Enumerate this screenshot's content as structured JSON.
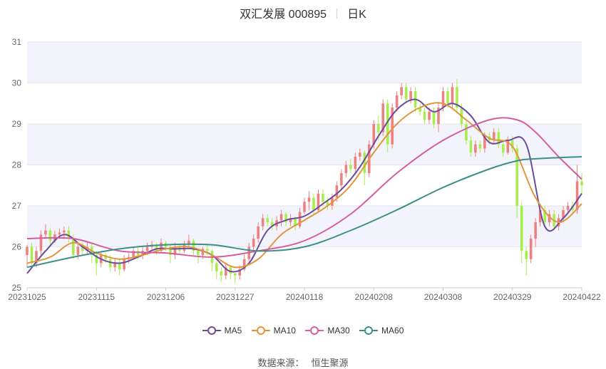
{
  "header": {
    "title": "双汇发展 000895",
    "period": "日K"
  },
  "source": {
    "label": "数据来源：",
    "provider": "恒生聚源"
  },
  "colors": {
    "up": "#f08080",
    "down": "#a6ee4a",
    "MA5": "#6a4c9c",
    "MA10": "#e3953e",
    "MA30": "#d55da2",
    "MA60": "#3b8f8a",
    "band": "#f3f4fb",
    "grid": "#e6e6ee"
  },
  "chart_data": {
    "type": "candlestick",
    "x_ticks": [
      "20231025",
      "20231115",
      "20231206",
      "20231227",
      "20240118",
      "20240208",
      "20240308",
      "20240329",
      "20240422"
    ],
    "y_ticks": [
      25,
      26,
      27,
      28,
      29,
      30,
      31
    ],
    "ylim": [
      25,
      31
    ],
    "n_days": 121,
    "candles": [
      [
        25.8,
        26.0,
        25.5,
        26.05
      ],
      [
        26.0,
        25.6,
        25.5,
        26.1
      ],
      [
        25.6,
        25.9,
        25.5,
        26.0
      ],
      [
        25.9,
        26.3,
        25.8,
        26.4
      ],
      [
        26.3,
        26.4,
        26.2,
        26.55
      ],
      [
        26.4,
        26.15,
        26.0,
        26.45
      ],
      [
        26.15,
        26.3,
        26.1,
        26.4
      ],
      [
        26.3,
        26.35,
        26.2,
        26.45
      ],
      [
        26.35,
        26.4,
        26.2,
        26.5
      ],
      [
        26.4,
        26.2,
        26.1,
        26.5
      ],
      [
        26.2,
        25.8,
        25.7,
        26.3
      ],
      [
        25.8,
        26.0,
        25.7,
        26.1
      ],
      [
        26.0,
        25.9,
        25.8,
        26.1
      ],
      [
        25.9,
        26.0,
        25.8,
        26.1
      ],
      [
        26.0,
        25.8,
        25.6,
        26.1
      ],
      [
        25.8,
        25.6,
        25.3,
        25.9
      ],
      [
        25.6,
        25.8,
        25.5,
        25.9
      ],
      [
        25.8,
        25.7,
        25.6,
        25.85
      ],
      [
        25.7,
        25.5,
        25.4,
        25.8
      ],
      [
        25.5,
        25.6,
        25.4,
        25.7
      ],
      [
        25.6,
        25.45,
        25.3,
        25.7
      ],
      [
        25.45,
        25.7,
        25.4,
        25.8
      ],
      [
        25.7,
        25.75,
        25.6,
        25.85
      ],
      [
        25.75,
        25.9,
        25.7,
        26.0
      ],
      [
        25.9,
        25.8,
        25.7,
        26.0
      ],
      [
        25.8,
        25.9,
        25.7,
        26.0
      ],
      [
        25.9,
        26.0,
        25.8,
        26.1
      ],
      [
        26.0,
        26.05,
        25.9,
        26.15
      ],
      [
        26.05,
        25.9,
        25.8,
        26.1
      ],
      [
        25.9,
        26.1,
        25.85,
        26.2
      ],
      [
        26.1,
        26.0,
        25.9,
        26.15
      ],
      [
        26.0,
        25.8,
        25.6,
        26.05
      ],
      [
        25.8,
        26.0,
        25.7,
        26.1
      ],
      [
        26.0,
        25.9,
        25.8,
        26.05
      ],
      [
        25.9,
        26.05,
        25.85,
        26.15
      ],
      [
        26.05,
        26.15,
        26.0,
        26.3
      ],
      [
        26.15,
        25.9,
        25.8,
        26.2
      ],
      [
        25.9,
        25.8,
        25.6,
        25.95
      ],
      [
        25.8,
        25.95,
        25.7,
        26.0
      ],
      [
        25.95,
        25.9,
        25.8,
        26.05
      ],
      [
        25.9,
        25.6,
        25.4,
        25.95
      ],
      [
        25.6,
        25.4,
        25.2,
        25.65
      ],
      [
        25.4,
        25.3,
        25.15,
        25.5
      ],
      [
        25.3,
        25.5,
        25.2,
        25.6
      ],
      [
        25.5,
        25.35,
        25.2,
        25.55
      ],
      [
        25.35,
        25.3,
        25.1,
        25.4
      ],
      [
        25.3,
        25.45,
        25.2,
        25.55
      ],
      [
        25.45,
        25.7,
        25.4,
        25.8
      ],
      [
        25.7,
        26.0,
        25.6,
        26.1
      ],
      [
        26.0,
        26.2,
        25.9,
        26.3
      ],
      [
        26.2,
        26.5,
        26.1,
        26.6
      ],
      [
        26.5,
        26.7,
        26.4,
        26.8
      ],
      [
        26.7,
        26.6,
        26.5,
        26.8
      ],
      [
        26.6,
        26.5,
        26.4,
        26.7
      ],
      [
        26.5,
        26.65,
        26.4,
        26.75
      ],
      [
        26.65,
        26.8,
        26.5,
        26.9
      ],
      [
        26.8,
        26.6,
        26.5,
        26.85
      ],
      [
        26.6,
        26.7,
        26.5,
        26.8
      ],
      [
        26.7,
        26.5,
        26.4,
        26.75
      ],
      [
        26.5,
        26.85,
        26.45,
        26.95
      ],
      [
        26.85,
        27.1,
        26.8,
        27.2
      ],
      [
        27.1,
        27.2,
        26.9,
        27.35
      ],
      [
        27.2,
        26.9,
        26.8,
        27.3
      ],
      [
        26.9,
        27.3,
        26.85,
        27.4
      ],
      [
        27.3,
        27.1,
        27.0,
        27.4
      ],
      [
        27.1,
        27.0,
        26.9,
        27.2
      ],
      [
        27.0,
        27.2,
        26.9,
        27.3
      ],
      [
        27.2,
        27.5,
        27.1,
        27.6
      ],
      [
        27.5,
        27.8,
        27.4,
        27.9
      ],
      [
        27.8,
        28.0,
        27.7,
        28.1
      ],
      [
        28.0,
        27.9,
        27.8,
        28.15
      ],
      [
        27.9,
        28.2,
        27.8,
        28.3
      ],
      [
        28.2,
        28.3,
        28.1,
        28.4
      ],
      [
        28.3,
        27.8,
        27.5,
        28.35
      ],
      [
        27.8,
        28.5,
        27.7,
        28.6
      ],
      [
        28.5,
        29.0,
        28.4,
        29.1
      ],
      [
        29.0,
        28.8,
        28.6,
        29.2
      ],
      [
        28.8,
        29.5,
        28.7,
        29.6
      ],
      [
        29.5,
        28.5,
        28.3,
        29.6
      ],
      [
        28.5,
        29.4,
        28.4,
        29.5
      ],
      [
        29.4,
        29.7,
        29.3,
        29.8
      ],
      [
        29.7,
        29.9,
        29.6,
        30.0
      ],
      [
        29.9,
        29.6,
        29.5,
        30.0
      ],
      [
        29.6,
        29.8,
        29.5,
        29.9
      ],
      [
        29.8,
        29.4,
        29.3,
        29.9
      ],
      [
        29.4,
        29.3,
        29.2,
        29.5
      ],
      [
        29.3,
        29.1,
        29.0,
        29.4
      ],
      [
        29.1,
        29.3,
        29.0,
        29.4
      ],
      [
        29.3,
        29.0,
        28.9,
        29.4
      ],
      [
        29.0,
        29.4,
        28.8,
        29.5
      ],
      [
        29.4,
        29.8,
        29.3,
        29.9
      ],
      [
        29.8,
        29.5,
        29.4,
        29.9
      ],
      [
        29.5,
        29.9,
        29.4,
        30.0
      ],
      [
        29.9,
        29.4,
        29.3,
        30.1
      ],
      [
        29.4,
        29.0,
        28.9,
        29.5
      ],
      [
        29.0,
        28.6,
        28.5,
        29.1
      ],
      [
        28.6,
        28.3,
        28.2,
        28.7
      ],
      [
        28.3,
        28.5,
        28.2,
        28.6
      ],
      [
        28.5,
        28.4,
        28.3,
        28.6
      ],
      [
        28.4,
        28.7,
        28.3,
        28.8
      ],
      [
        28.7,
        28.6,
        28.5,
        28.8
      ],
      [
        28.6,
        28.8,
        28.5,
        28.9
      ],
      [
        28.8,
        28.5,
        28.4,
        28.9
      ],
      [
        28.5,
        28.3,
        28.2,
        28.6
      ],
      [
        28.3,
        28.6,
        28.25,
        28.7
      ],
      [
        28.6,
        28.4,
        28.3,
        28.7
      ],
      [
        28.4,
        27.0,
        26.7,
        28.5
      ],
      [
        27.0,
        25.9,
        25.6,
        27.1
      ],
      [
        25.9,
        25.7,
        25.3,
        26.0
      ],
      [
        25.7,
        26.2,
        25.6,
        26.3
      ],
      [
        26.2,
        26.6,
        26.0,
        26.7
      ],
      [
        26.6,
        26.9,
        26.5,
        27.0
      ],
      [
        26.9,
        26.6,
        26.5,
        27.0
      ],
      [
        26.6,
        26.8,
        26.5,
        26.9
      ],
      [
        26.8,
        26.5,
        26.4,
        26.9
      ],
      [
        26.5,
        26.7,
        26.4,
        26.8
      ],
      [
        26.7,
        26.9,
        26.6,
        27.0
      ],
      [
        26.9,
        27.0,
        26.8,
        27.1
      ],
      [
        27.0,
        26.9,
        26.8,
        27.1
      ],
      [
        26.9,
        27.6,
        26.8,
        28.0
      ],
      [
        27.6,
        27.5,
        27.3,
        27.8
      ]
    ],
    "series": [
      {
        "name": "MA5",
        "x": [
          0,
          4,
          8,
          12,
          16,
          20,
          24,
          28,
          32,
          36,
          40,
          44,
          48,
          52,
          56,
          60,
          64,
          68,
          72,
          76,
          80,
          84,
          88,
          92,
          96,
          100,
          104,
          108,
          112,
          116,
          120
        ],
        "values": [
          25.35,
          25.9,
          26.3,
          26.0,
          25.7,
          25.6,
          25.75,
          25.95,
          25.95,
          25.95,
          25.8,
          25.4,
          25.6,
          26.4,
          26.65,
          26.75,
          27.05,
          27.4,
          27.95,
          28.7,
          29.35,
          29.6,
          29.3,
          29.5,
          29.2,
          28.55,
          28.6,
          28.5,
          26.5,
          26.7,
          27.3
        ]
      },
      {
        "name": "MA10",
        "x": [
          0,
          5,
          10,
          15,
          20,
          25,
          30,
          35,
          40,
          45,
          50,
          55,
          60,
          65,
          70,
          75,
          80,
          85,
          90,
          95,
          100,
          105,
          110,
          115,
          120
        ],
        "values": [
          25.6,
          25.75,
          26.1,
          25.85,
          25.7,
          25.8,
          25.95,
          26.0,
          25.8,
          25.5,
          25.7,
          26.3,
          26.65,
          27.0,
          27.5,
          28.3,
          29.0,
          29.4,
          29.5,
          29.1,
          28.65,
          28.45,
          27.2,
          26.6,
          27.05
        ]
      },
      {
        "name": "MA30",
        "x": [
          0,
          10,
          20,
          30,
          40,
          50,
          60,
          70,
          80,
          90,
          100,
          106,
          110,
          115,
          120
        ],
        "values": [
          26.2,
          26.2,
          25.9,
          25.85,
          25.75,
          25.9,
          26.15,
          26.8,
          27.8,
          28.6,
          29.1,
          29.1,
          28.8,
          28.2,
          27.65
        ]
      },
      {
        "name": "MA60",
        "x": [
          0,
          10,
          20,
          30,
          40,
          50,
          60,
          70,
          80,
          90,
          100,
          106,
          110,
          120
        ],
        "values": [
          25.5,
          25.75,
          25.95,
          26.05,
          26.05,
          25.9,
          26.0,
          26.4,
          26.9,
          27.45,
          27.9,
          28.1,
          28.15,
          28.2
        ]
      }
    ]
  }
}
